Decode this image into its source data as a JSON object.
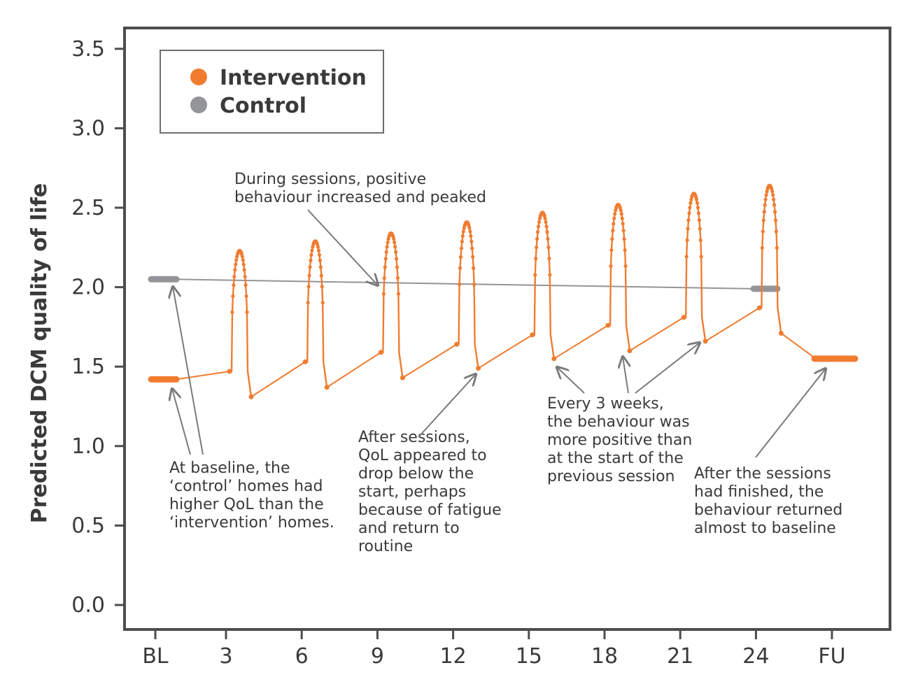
{
  "chart_data": {
    "type": "line",
    "title": "",
    "ylabel": "Predicted DCM quality of life",
    "xlabel": "",
    "x_tick_labels": [
      "BL",
      "3",
      "6",
      "9",
      "12",
      "15",
      "18",
      "21",
      "24",
      "FU"
    ],
    "y_ticks": [
      "0.0",
      "0.5",
      "1.0",
      "1.5",
      "2.0",
      "2.5",
      "3.0",
      "3.5"
    ],
    "ylim": [
      0,
      3.5
    ],
    "legend_position": "top-left",
    "series": [
      {
        "name": "Intervention",
        "color": "#f07c30",
        "baseline": 1.42,
        "follow_up": 1.55,
        "sessions": [
          {
            "start": 1.47,
            "peak": 2.23,
            "after": 1.31
          },
          {
            "start": 1.53,
            "peak": 2.29,
            "after": 1.37
          },
          {
            "start": 1.59,
            "peak": 2.34,
            "after": 1.43
          },
          {
            "start": 1.64,
            "peak": 2.41,
            "after": 1.49
          },
          {
            "start": 1.7,
            "peak": 2.47,
            "after": 1.55
          },
          {
            "start": 1.76,
            "peak": 2.52,
            "after": 1.6
          },
          {
            "start": 1.81,
            "peak": 2.59,
            "after": 1.66
          },
          {
            "start": 1.87,
            "peak": 2.64,
            "after": 1.71
          }
        ]
      },
      {
        "name": "Control",
        "color": "#939598",
        "baseline": 2.05,
        "end": 1.99
      }
    ],
    "annotations": [
      {
        "lines": [
          "During sessions, positive",
          "behaviour increased and peaked"
        ]
      },
      {
        "lines": [
          "At baseline, the",
          "‘control’ homes had",
          "higher QoL than the",
          "‘intervention’ homes."
        ]
      },
      {
        "lines": [
          "After sessions,",
          "QoL appeared to",
          "drop below the",
          "start, perhaps",
          "because of fatigue",
          "and return to",
          "routine"
        ]
      },
      {
        "lines": [
          "Every 3 weeks,",
          "the behaviour was",
          "more positive than",
          "at the start of the",
          "previous session"
        ]
      },
      {
        "lines": [
          "After the sessions",
          "had finished, the",
          "behaviour returned",
          "almost to baseline"
        ]
      }
    ]
  }
}
